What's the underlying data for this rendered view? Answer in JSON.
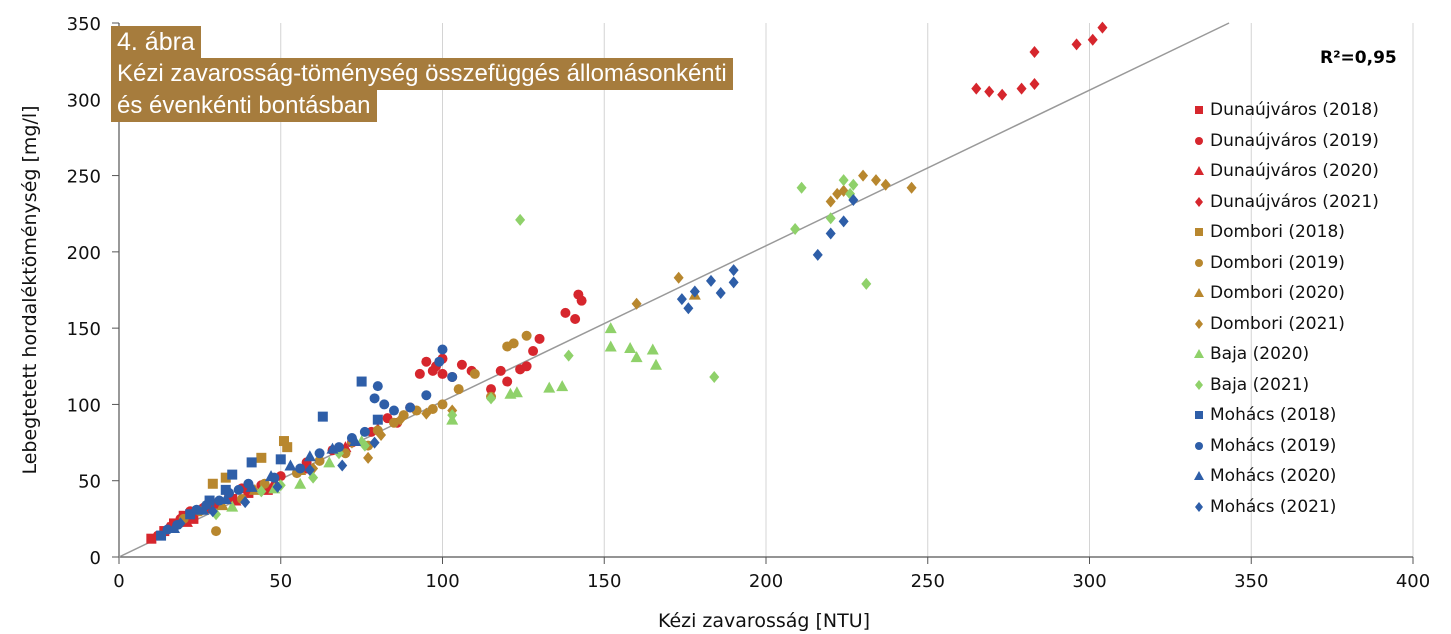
{
  "caption": {
    "figure_label": "4. ábra",
    "title_line1": "Kézi zavarosság-töménység összefüggés állomásonkénti",
    "title_line2": "és évenkénti bontásban"
  },
  "colors": {
    "Dunaújváros": "#d6262d",
    "Dombori": "#b8872e",
    "Baja": "#8fd16a",
    "Mohács": "#2e5ea8",
    "caption_bg": "#a67c3d",
    "trendline": "#999999"
  },
  "chart_data": {
    "type": "scatter",
    "xlabel": "Kézi zavarosság [NTU]",
    "ylabel": "Lebegtetett hordaléktöménység [mg/l]",
    "xlim": [
      0,
      400
    ],
    "ylim": [
      0,
      350
    ],
    "xticks": [
      0,
      50,
      100,
      150,
      200,
      250,
      300,
      350,
      400
    ],
    "yticks": [
      0,
      50,
      100,
      150,
      200,
      250,
      300,
      350
    ],
    "grid": "vertical",
    "legend_position": "right",
    "annotation": "R²=0,95",
    "trendline": {
      "slope": 1.02,
      "intercept": 0
    },
    "series": [
      {
        "name": "Dunaújváros (2018)",
        "marker": "square",
        "color": "#d6262d",
        "points": [
          [
            10,
            12
          ],
          [
            14,
            17
          ],
          [
            17,
            22
          ],
          [
            20,
            27
          ],
          [
            23,
            25
          ],
          [
            27,
            32
          ],
          [
            31,
            35
          ],
          [
            35,
            38
          ],
          [
            40,
            42
          ],
          [
            46,
            44
          ]
        ]
      },
      {
        "name": "Dunaújváros (2019)",
        "marker": "circle",
        "color": "#d6262d",
        "points": [
          [
            12,
            14
          ],
          [
            16,
            20
          ],
          [
            19,
            25
          ],
          [
            22,
            30
          ],
          [
            26,
            32
          ],
          [
            30,
            34
          ],
          [
            34,
            41
          ],
          [
            38,
            45
          ],
          [
            44,
            47
          ],
          [
            50,
            53
          ],
          [
            58,
            62
          ],
          [
            66,
            70
          ],
          [
            72,
            75
          ],
          [
            78,
            82
          ],
          [
            83,
            91
          ],
          [
            86,
            88
          ],
          [
            90,
            98
          ],
          [
            93,
            120
          ],
          [
            95,
            128
          ],
          [
            97,
            122
          ],
          [
            98,
            125
          ],
          [
            100,
            120
          ],
          [
            100,
            130
          ],
          [
            103,
            118
          ],
          [
            106,
            126
          ],
          [
            109,
            122
          ],
          [
            115,
            110
          ],
          [
            118,
            122
          ],
          [
            120,
            115
          ],
          [
            124,
            123
          ],
          [
            126,
            125
          ],
          [
            128,
            135
          ],
          [
            130,
            143
          ],
          [
            138,
            160
          ],
          [
            141,
            156
          ],
          [
            142,
            172
          ],
          [
            143,
            168
          ]
        ]
      },
      {
        "name": "Dunaújváros (2020)",
        "marker": "triangle",
        "color": "#d6262d",
        "points": [
          [
            15,
            19
          ],
          [
            21,
            23
          ],
          [
            28,
            33
          ],
          [
            36,
            37
          ],
          [
            48,
            49
          ],
          [
            58,
            58
          ],
          [
            70,
            72
          ],
          [
            80,
            84
          ]
        ]
      },
      {
        "name": "Dunaújváros (2021)",
        "marker": "diamond",
        "color": "#d6262d",
        "points": [
          [
            265,
            307
          ],
          [
            269,
            305
          ],
          [
            273,
            303
          ],
          [
            279,
            307
          ],
          [
            283,
            331
          ],
          [
            283,
            310
          ],
          [
            296,
            336
          ],
          [
            301,
            339
          ],
          [
            304,
            347
          ]
        ]
      },
      {
        "name": "Dombori (2018)",
        "marker": "square",
        "color": "#b8872e",
        "points": [
          [
            29,
            48
          ],
          [
            33,
            52
          ],
          [
            44,
            65
          ],
          [
            51,
            76
          ],
          [
            52,
            72
          ]
        ]
      },
      {
        "name": "Dombori (2019)",
        "marker": "circle",
        "color": "#b8872e",
        "points": [
          [
            20,
            25
          ],
          [
            25,
            30
          ],
          [
            30,
            17
          ],
          [
            38,
            38
          ],
          [
            45,
            48
          ],
          [
            55,
            55
          ],
          [
            62,
            63
          ],
          [
            70,
            68
          ],
          [
            77,
            73
          ],
          [
            80,
            83
          ],
          [
            85,
            88
          ],
          [
            88,
            93
          ],
          [
            92,
            96
          ],
          [
            97,
            97
          ],
          [
            100,
            100
          ],
          [
            105,
            110
          ],
          [
            110,
            120
          ],
          [
            115,
            105
          ],
          [
            120,
            138
          ],
          [
            122,
            140
          ],
          [
            126,
            145
          ]
        ]
      },
      {
        "name": "Dombori (2020)",
        "marker": "triangle",
        "color": "#b8872e",
        "points": [
          [
            32,
            34
          ],
          [
            42,
            44
          ],
          [
            56,
            57
          ],
          [
            178,
            172
          ]
        ]
      },
      {
        "name": "Dombori (2021)",
        "marker": "diamond",
        "color": "#b8872e",
        "points": [
          [
            60,
            58
          ],
          [
            72,
            75
          ],
          [
            77,
            65
          ],
          [
            81,
            80
          ],
          [
            87,
            90
          ],
          [
            95,
            94
          ],
          [
            103,
            96
          ],
          [
            160,
            166
          ],
          [
            173,
            183
          ],
          [
            220,
            233
          ],
          [
            222,
            238
          ],
          [
            224,
            240
          ],
          [
            230,
            250
          ],
          [
            234,
            247
          ],
          [
            237,
            244
          ],
          [
            245,
            242
          ]
        ]
      },
      {
        "name": "Baja (2020)",
        "marker": "triangle",
        "color": "#8fd16a",
        "points": [
          [
            35,
            33
          ],
          [
            48,
            45
          ],
          [
            56,
            48
          ],
          [
            65,
            62
          ],
          [
            75,
            76
          ],
          [
            103,
            90
          ],
          [
            121,
            107
          ],
          [
            123,
            108
          ],
          [
            133,
            111
          ],
          [
            137,
            112
          ],
          [
            152,
            150
          ],
          [
            152,
            138
          ],
          [
            158,
            137
          ],
          [
            160,
            131
          ],
          [
            165,
            136
          ],
          [
            166,
            126
          ]
        ]
      },
      {
        "name": "Baja (2021)",
        "marker": "diamond",
        "color": "#8fd16a",
        "points": [
          [
            30,
            28
          ],
          [
            44,
            43
          ],
          [
            50,
            47
          ],
          [
            60,
            52
          ],
          [
            68,
            68
          ],
          [
            76,
            73
          ],
          [
            103,
            93
          ],
          [
            115,
            104
          ],
          [
            124,
            221
          ],
          [
            139,
            132
          ],
          [
            184,
            118
          ],
          [
            209,
            215
          ],
          [
            211,
            242
          ],
          [
            220,
            222
          ],
          [
            224,
            247
          ],
          [
            226,
            238
          ],
          [
            227,
            244
          ],
          [
            231,
            179
          ]
        ]
      },
      {
        "name": "Mohács (2018)",
        "marker": "square",
        "color": "#2e5ea8",
        "points": [
          [
            13,
            14
          ],
          [
            22,
            28
          ],
          [
            28,
            37
          ],
          [
            33,
            44
          ],
          [
            35,
            54
          ],
          [
            41,
            62
          ],
          [
            50,
            64
          ],
          [
            63,
            92
          ],
          [
            75,
            115
          ],
          [
            80,
            90
          ]
        ]
      },
      {
        "name": "Mohács (2019)",
        "marker": "circle",
        "color": "#2e5ea8",
        "points": [
          [
            15,
            18
          ],
          [
            18,
            21
          ],
          [
            24,
            31
          ],
          [
            27,
            34
          ],
          [
            31,
            37
          ],
          [
            34,
            42
          ],
          [
            37,
            44
          ],
          [
            40,
            48
          ],
          [
            48,
            52
          ],
          [
            56,
            58
          ],
          [
            62,
            68
          ],
          [
            68,
            72
          ],
          [
            72,
            78
          ],
          [
            76,
            82
          ],
          [
            79,
            104
          ],
          [
            80,
            112
          ],
          [
            82,
            100
          ],
          [
            85,
            96
          ],
          [
            90,
            98
          ],
          [
            95,
            106
          ],
          [
            99,
            128
          ],
          [
            100,
            136
          ],
          [
            103,
            118
          ]
        ]
      },
      {
        "name": "Mohács (2020)",
        "marker": "triangle",
        "color": "#2e5ea8",
        "points": [
          [
            17,
            19
          ],
          [
            26,
            31
          ],
          [
            33,
            38
          ],
          [
            41,
            46
          ],
          [
            47,
            53
          ],
          [
            53,
            60
          ],
          [
            59,
            66
          ],
          [
            66,
            71
          ],
          [
            73,
            76
          ]
        ]
      },
      {
        "name": "Mohács (2021)",
        "marker": "diamond",
        "color": "#2e5ea8",
        "points": [
          [
            19,
            22
          ],
          [
            29,
            30
          ],
          [
            39,
            36
          ],
          [
            49,
            46
          ],
          [
            59,
            57
          ],
          [
            69,
            60
          ],
          [
            79,
            75
          ],
          [
            174,
            169
          ],
          [
            176,
            163
          ],
          [
            178,
            174
          ],
          [
            183,
            181
          ],
          [
            186,
            173
          ],
          [
            190,
            180
          ],
          [
            190,
            188
          ],
          [
            216,
            198
          ],
          [
            220,
            212
          ],
          [
            224,
            220
          ],
          [
            227,
            234
          ]
        ]
      }
    ]
  }
}
